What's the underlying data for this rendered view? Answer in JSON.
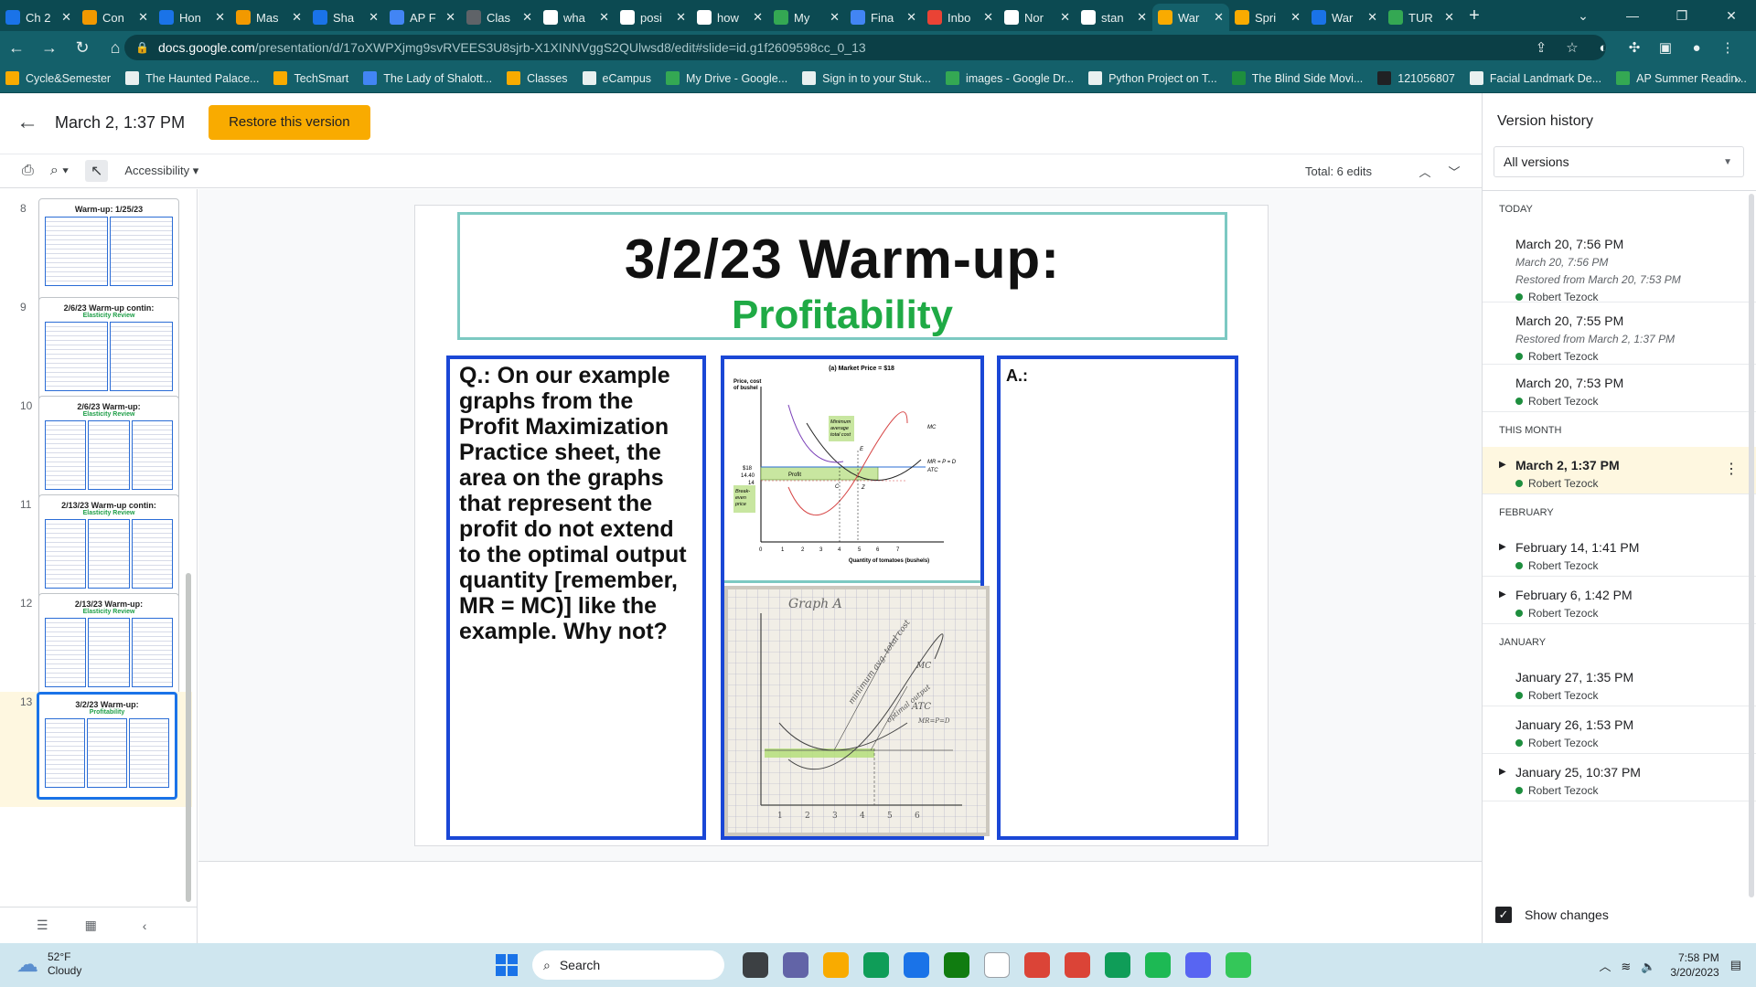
{
  "tabs": [
    {
      "label": "Ch 2",
      "color": "#1a73e8"
    },
    {
      "label": "Con",
      "color": "#f29900"
    },
    {
      "label": "Hon",
      "color": "#1a73e8"
    },
    {
      "label": "Mas",
      "color": "#f29900"
    },
    {
      "label": "Sha",
      "color": "#1a73e8"
    },
    {
      "label": "AP F",
      "color": "#4285f4"
    },
    {
      "label": "Clas",
      "color": "#5f6368"
    },
    {
      "label": "wha",
      "color": "#ffffff"
    },
    {
      "label": "posi",
      "color": "#ffffff"
    },
    {
      "label": "how",
      "color": "#ffffff"
    },
    {
      "label": "My",
      "color": "#34a853"
    },
    {
      "label": "Fina",
      "color": "#4285f4"
    },
    {
      "label": "Inbo",
      "color": "#ea4335"
    },
    {
      "label": "Nor",
      "color": "#ffffff"
    },
    {
      "label": "stan",
      "color": "#ffffff"
    },
    {
      "label": "War",
      "color": "#f9ab00"
    },
    {
      "label": "Spri",
      "color": "#f9ab00"
    },
    {
      "label": "War",
      "color": "#1a73e8"
    },
    {
      "label": "TUR",
      "color": "#34a853"
    }
  ],
  "active_tab_index": 15,
  "address": {
    "host": "docs.google.com",
    "path": "/presentation/d/17oXWPXjmg9svRVEES3U8sjrb-X1XINNVggS2QUlwsd8/edit#slide=id.g1f2609598cc_0_13"
  },
  "bookmarks": [
    {
      "label": "Cycle&Semester",
      "color": "#f9ab00"
    },
    {
      "label": "The Haunted Palace...",
      "color": "#e8f0f0"
    },
    {
      "label": "TechSmart",
      "color": "#f9ab00"
    },
    {
      "label": "The Lady of Shalott...",
      "color": "#4285f4"
    },
    {
      "label": "Classes",
      "color": "#f9ab00"
    },
    {
      "label": "eCampus",
      "color": "#e8f0f0"
    },
    {
      "label": "My Drive - Google...",
      "color": "#34a853"
    },
    {
      "label": "Sign in to your Stuk...",
      "color": "#e8f0f0"
    },
    {
      "label": "images - Google Dr...",
      "color": "#34a853"
    },
    {
      "label": "Python Project on T...",
      "color": "#e8f0f0"
    },
    {
      "label": "The Blind Side Movi...",
      "color": "#1e8e3e"
    },
    {
      "label": "121056807",
      "color": "#202124"
    },
    {
      "label": "Facial Landmark De...",
      "color": "#e8f0f0"
    },
    {
      "label": "AP Summer Readin...",
      "color": "#34a853"
    }
  ],
  "header": {
    "version_title": "March 2, 1:37 PM",
    "restore_label": "Restore this version"
  },
  "toolbar": {
    "accessibility_label": "Accessibility",
    "total_edits": "Total: 6 edits"
  },
  "filmstrip": [
    {
      "num": "8",
      "title": "Warm-up: 1/25/23",
      "subtitle": ""
    },
    {
      "num": "9",
      "title": "2/6/23 Warm-up contin:",
      "subtitle": "Elasticity Review"
    },
    {
      "num": "10",
      "title": "2/6/23 Warm-up:",
      "subtitle": "Elasticity Review"
    },
    {
      "num": "11",
      "title": "2/13/23 Warm-up contin:",
      "subtitle": "Elasticity Review"
    },
    {
      "num": "12",
      "title": "2/13/23 Warm-up:",
      "subtitle": "Elasticity Review"
    },
    {
      "num": "13",
      "title": "3/2/23 Warm-up:",
      "subtitle": "Profitability"
    }
  ],
  "slide": {
    "title": "3/2/23 Warm-up:",
    "subtitle": "Profitability",
    "question": "Q.:  On our example graphs from the Profit Maximization Practice sheet, the area on the graphs that represent the profit do not extend to the optimal output quantity [remember, MR = MC)] like the example.  Why not?",
    "answer_label": "A.:",
    "graph1": {
      "title": "(a) Market Price = $18",
      "ylabel_line1": "Price, cost",
      "ylabel_line2": "of bushel",
      "xlabel": "Quantity of tomatoes (bushels)",
      "y_ticks": [
        "$18",
        "14.40",
        "14"
      ],
      "x_ticks": [
        "0",
        "1",
        "2",
        "3",
        "4",
        "5",
        "6",
        "7"
      ],
      "profit_label": "Profit",
      "breakeven_label": [
        "Break-",
        "even",
        "price"
      ],
      "min_label": [
        "Minimum",
        "average",
        "total cost"
      ],
      "mc_label": "MC",
      "mr_label": "MR = P = D",
      "atc_label": "ATC",
      "points": [
        "C",
        "E",
        "Z"
      ]
    },
    "graph2": {
      "title": "Graph A",
      "labels": [
        "minimum avg. total cost",
        "MC",
        "optimal output",
        "ATC",
        "MR=P=D"
      ],
      "x_ticks": [
        "1",
        "2",
        "3",
        "4",
        "5",
        "6"
      ]
    }
  },
  "version_panel": {
    "title": "Version history",
    "filter": "All versions",
    "sections": [
      {
        "label": "TODAY",
        "entries": [
          {
            "date": "March 20, 7:56 PM",
            "sublines": [
              "March 20, 7:56 PM",
              "Restored from March 20, 7:53 PM"
            ],
            "user": "Robert Tezock",
            "expandable": false,
            "selected": false
          },
          {
            "date": "March 20, 7:55 PM",
            "sublines": [
              "Restored from March 2, 1:37 PM"
            ],
            "user": "Robert Tezock",
            "expandable": false,
            "selected": false
          },
          {
            "date": "March 20, 7:53 PM",
            "sublines": [],
            "user": "Robert Tezock",
            "expandable": false,
            "selected": false
          }
        ]
      },
      {
        "label": "THIS MONTH",
        "entries": [
          {
            "date": "March 2, 1:37 PM",
            "sublines": [],
            "user": "Robert Tezock",
            "expandable": true,
            "selected": true
          }
        ]
      },
      {
        "label": "FEBRUARY",
        "entries": [
          {
            "date": "February 14, 1:41 PM",
            "sublines": [],
            "user": "Robert Tezock",
            "expandable": true,
            "selected": false
          },
          {
            "date": "February 6, 1:42 PM",
            "sublines": [],
            "user": "Robert Tezock",
            "expandable": true,
            "selected": false
          }
        ]
      },
      {
        "label": "JANUARY",
        "entries": [
          {
            "date": "January 27, 1:35 PM",
            "sublines": [],
            "user": "Robert Tezock",
            "expandable": false,
            "selected": false
          },
          {
            "date": "January 26, 1:53 PM",
            "sublines": [],
            "user": "Robert Tezock",
            "expandable": false,
            "selected": false
          },
          {
            "date": "January 25, 10:37 PM",
            "sublines": [],
            "user": "Robert Tezock",
            "expandable": true,
            "selected": false
          }
        ]
      }
    ],
    "show_changes_label": "Show changes",
    "show_changes_checked": true
  },
  "taskbar": {
    "weather_temp": "52°F",
    "weather_desc": "Cloudy",
    "search_label": "Search",
    "time": "7:58 PM",
    "date": "3/20/2023",
    "apps": [
      {
        "name": "task-view",
        "color": "#3c4043"
      },
      {
        "name": "teams",
        "color": "#6264a7"
      },
      {
        "name": "file-explorer",
        "color": "#f9ab00"
      },
      {
        "name": "edge",
        "color": "#0f9d58"
      },
      {
        "name": "store",
        "color": "#1a73e8"
      },
      {
        "name": "xbox",
        "color": "#107c10"
      },
      {
        "name": "notepad",
        "color": "#ffffff"
      },
      {
        "name": "chrome-1",
        "color": "#db4437"
      },
      {
        "name": "chrome-2",
        "color": "#db4437"
      },
      {
        "name": "chrome-3",
        "color": "#0f9d58"
      },
      {
        "name": "spotify",
        "color": "#1db954"
      },
      {
        "name": "discord",
        "color": "#5865f2"
      },
      {
        "name": "app-green",
        "color": "#34c759"
      }
    ]
  }
}
